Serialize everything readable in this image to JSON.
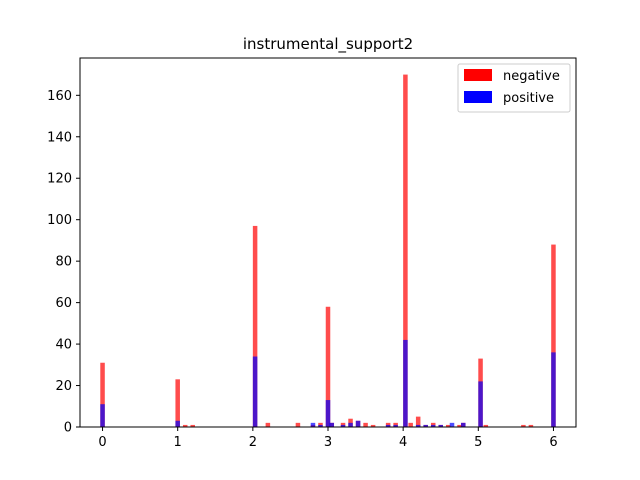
{
  "chart_data": {
    "type": "bar",
    "title": "instrumental_support2",
    "xlabel": "",
    "ylabel": "",
    "xlim": [
      -0.3,
      6.3
    ],
    "ylim": [
      0,
      178
    ],
    "x_ticks": [
      0,
      1,
      2,
      3,
      4,
      5,
      6
    ],
    "y_ticks": [
      0,
      20,
      40,
      60,
      80,
      100,
      120,
      140,
      160
    ],
    "bin_width": 0.06,
    "legend": {
      "placement": "top-right"
    },
    "series": [
      {
        "name": "negative",
        "color": "#ff0000",
        "opacity": 0.7,
        "x": [
          0.0,
          1.0,
          1.1,
          1.2,
          2.03,
          2.2,
          2.6,
          2.8,
          2.9,
          3.0,
          3.05,
          3.2,
          3.3,
          3.4,
          3.5,
          3.6,
          3.8,
          3.9,
          4.03,
          4.1,
          4.2,
          4.3,
          4.4,
          4.5,
          4.6,
          4.75,
          4.8,
          5.03,
          5.1,
          5.6,
          5.7,
          6.0
        ],
        "values": [
          31,
          23,
          1,
          1,
          97,
          2,
          2,
          1,
          2,
          58,
          2,
          2,
          4,
          3,
          2,
          1,
          2,
          2,
          170,
          2,
          5,
          1,
          2,
          1,
          1,
          1,
          2,
          33,
          1,
          1,
          1,
          88
        ]
      },
      {
        "name": "positive",
        "color": "#0000ff",
        "opacity": 0.7,
        "x": [
          0.0,
          1.0,
          2.03,
          2.8,
          2.9,
          3.0,
          3.05,
          3.2,
          3.3,
          3.4,
          3.8,
          3.9,
          4.03,
          4.2,
          4.3,
          4.4,
          4.5,
          4.65,
          4.8,
          5.03,
          6.0
        ],
        "values": [
          11,
          3,
          34,
          2,
          1,
          13,
          2,
          1,
          2,
          3,
          1,
          1,
          42,
          1,
          1,
          1,
          1,
          2,
          2,
          22,
          36
        ]
      }
    ]
  }
}
